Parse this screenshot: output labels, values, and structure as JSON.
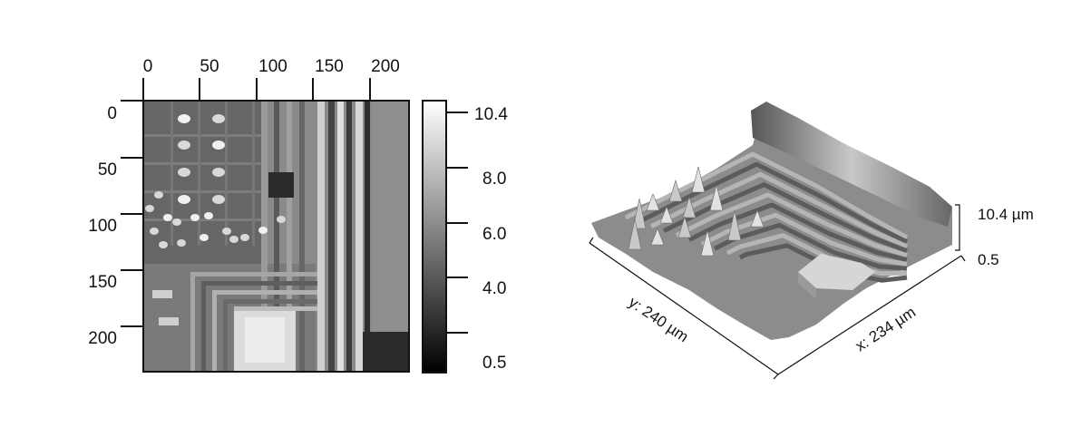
{
  "chart_data": [
    {
      "type": "heatmap",
      "colormap": "grayscale",
      "x_ticks": [
        "0",
        "50",
        "100",
        "150",
        "200"
      ],
      "y_ticks": [
        "0",
        "50",
        "100",
        "150",
        "200"
      ],
      "x_range": [
        0,
        234
      ],
      "y_range": [
        0,
        240
      ],
      "colorbar": {
        "ticks": [
          "10.4",
          "8.0",
          "6.0",
          "4.0",
          "0.5"
        ],
        "range": [
          0.5,
          10.4
        ]
      }
    },
    {
      "type": "surface",
      "colormap": "grayscale",
      "x_label": "x: 234  µm",
      "y_label": "y: 240  µm",
      "z_max_label": "10.4  µm",
      "z_min_label": "0.5"
    }
  ]
}
